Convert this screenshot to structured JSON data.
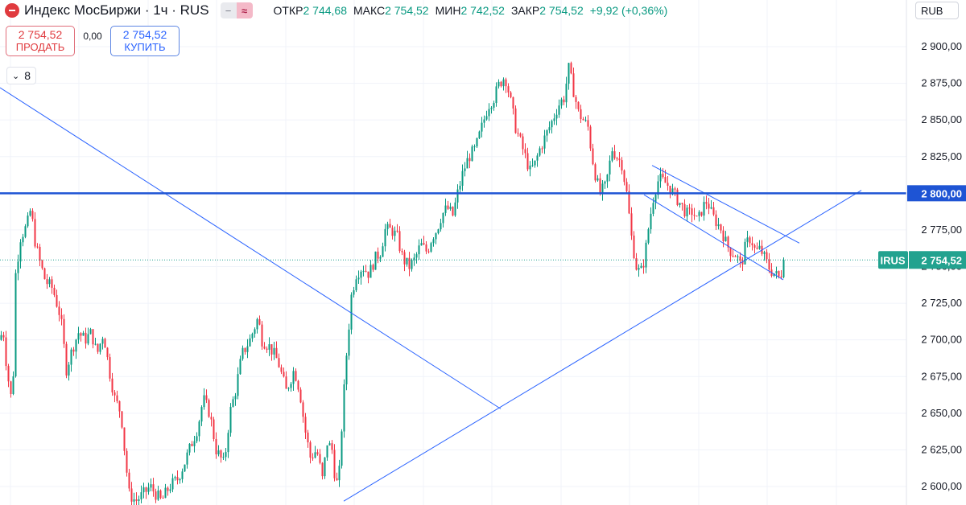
{
  "header": {
    "title": "Индекс МосБиржи · 1ч · RUS",
    "ohlc": [
      {
        "label": "ОТКР",
        "value": "2 744,68"
      },
      {
        "label": "МАКС",
        "value": "2 754,52"
      },
      {
        "label": "МИН",
        "value": "2 742,52"
      },
      {
        "label": "ЗАКР",
        "value": "2 754,52"
      }
    ],
    "change": "+9,92 (+0,36%)"
  },
  "trade": {
    "sell_price": "2 754,52",
    "sell_label": "ПРОДАТЬ",
    "spread": "0,00",
    "buy_price": "2 754,52",
    "buy_label": "КУПИТЬ"
  },
  "indicators_count": "8",
  "currency": "RUB",
  "colors": {
    "up": "#089981",
    "down": "#f23645",
    "line": "#2962ff",
    "level": "#1e54d4",
    "badge": "#22a28f",
    "level_badge": "#1e54d4"
  },
  "chart_data": {
    "type": "candlestick",
    "symbol": "IRUS",
    "interval": "1ч",
    "price_axis": {
      "ticks": [
        2600,
        2625,
        2650,
        2675,
        2700,
        2725,
        2750,
        2775,
        2800,
        2825,
        2850,
        2875,
        2900
      ],
      "tick_labels": [
        "2 600,00",
        "2 625,00",
        "2 650,00",
        "2 675,00",
        "2 700,00",
        "2 725,00",
        "2 750,00",
        "2 775,00",
        "2 800,00",
        "2 825,00",
        "2 850,00",
        "2 875,00",
        "2 900,00"
      ],
      "ylim": [
        2589,
        2920
      ]
    },
    "last_price": {
      "value": 2754.52,
      "symbol_label": "IRUS",
      "label": "2 754,52"
    },
    "horizontal_level": {
      "value": 2800,
      "label": "2 800,00"
    },
    "close_path": [
      [
        0,
        2700
      ],
      [
        3,
        2710
      ],
      [
        8,
        2680
      ],
      [
        12,
        2665
      ],
      [
        15,
        2655
      ],
      [
        19,
        2745
      ],
      [
        25,
        2770
      ],
      [
        33,
        2778
      ],
      [
        38,
        2790
      ],
      [
        42,
        2770
      ],
      [
        48,
        2755
      ],
      [
        56,
        2740
      ],
      [
        65,
        2735
      ],
      [
        75,
        2715
      ],
      [
        82,
        2680
      ],
      [
        90,
        2695
      ],
      [
        97,
        2705
      ],
      [
        105,
        2700
      ],
      [
        113,
        2705
      ],
      [
        120,
        2690
      ],
      [
        128,
        2705
      ],
      [
        135,
        2680
      ],
      [
        142,
        2660
      ],
      [
        150,
        2650
      ],
      [
        155,
        2620
      ],
      [
        160,
        2595
      ],
      [
        168,
        2590
      ],
      [
        178,
        2595
      ],
      [
        186,
        2600
      ],
      [
        193,
        2595
      ],
      [
        200,
        2590
      ],
      [
        210,
        2600
      ],
      [
        220,
        2605
      ],
      [
        228,
        2615
      ],
      [
        238,
        2630
      ],
      [
        245,
        2640
      ],
      [
        252,
        2660
      ],
      [
        260,
        2650
      ],
      [
        268,
        2625
      ],
      [
        278,
        2615
      ],
      [
        285,
        2650
      ],
      [
        292,
        2665
      ],
      [
        300,
        2690
      ],
      [
        310,
        2700
      ],
      [
        320,
        2715
      ],
      [
        325,
        2700
      ],
      [
        335,
        2695
      ],
      [
        345,
        2685
      ],
      [
        355,
        2665
      ],
      [
        365,
        2680
      ],
      [
        372,
        2665
      ],
      [
        378,
        2640
      ],
      [
        385,
        2620
      ],
      [
        393,
        2625
      ],
      [
        400,
        2605
      ],
      [
        406,
        2630
      ],
      [
        412,
        2625
      ],
      [
        416,
        2605
      ],
      [
        420,
        2600
      ],
      [
        425,
        2650
      ],
      [
        430,
        2690
      ],
      [
        436,
        2730
      ],
      [
        442,
        2745
      ],
      [
        450,
        2750
      ],
      [
        458,
        2745
      ],
      [
        465,
        2755
      ],
      [
        472,
        2760
      ],
      [
        478,
        2775
      ],
      [
        486,
        2775
      ],
      [
        493,
        2770
      ],
      [
        500,
        2755
      ],
      [
        508,
        2750
      ],
      [
        515,
        2755
      ],
      [
        522,
        2765
      ],
      [
        530,
        2760
      ],
      [
        536,
        2770
      ],
      [
        542,
        2775
      ],
      [
        548,
        2785
      ],
      [
        555,
        2790
      ],
      [
        562,
        2785
      ],
      [
        568,
        2800
      ],
      [
        575,
        2815
      ],
      [
        582,
        2825
      ],
      [
        590,
        2830
      ],
      [
        598,
        2845
      ],
      [
        606,
        2860
      ],
      [
        613,
        2865
      ],
      [
        620,
        2875
      ],
      [
        627,
        2880
      ],
      [
        633,
        2865
      ],
      [
        640,
        2845
      ],
      [
        646,
        2835
      ],
      [
        652,
        2825
      ],
      [
        658,
        2815
      ],
      [
        664,
        2820
      ],
      [
        670,
        2830
      ],
      [
        678,
        2840
      ],
      [
        686,
        2850
      ],
      [
        693,
        2860
      ],
      [
        700,
        2865
      ],
      [
        706,
        2885
      ],
      [
        712,
        2870
      ],
      [
        718,
        2855
      ],
      [
        724,
        2850
      ],
      [
        730,
        2845
      ],
      [
        735,
        2825
      ],
      [
        740,
        2810
      ],
      [
        745,
        2800
      ],
      [
        752,
        2805
      ],
      [
        760,
        2830
      ],
      [
        766,
        2825
      ],
      [
        772,
        2820
      ],
      [
        778,
        2800
      ],
      [
        784,
        2770
      ],
      [
        790,
        2750
      ],
      [
        795,
        2745
      ],
      [
        800,
        2755
      ],
      [
        806,
        2780
      ],
      [
        812,
        2800
      ],
      [
        818,
        2810
      ],
      [
        824,
        2808
      ],
      [
        830,
        2805
      ],
      [
        836,
        2800
      ],
      [
        842,
        2795
      ],
      [
        848,
        2790
      ],
      [
        854,
        2785
      ],
      [
        860,
        2788
      ],
      [
        866,
        2780
      ],
      [
        872,
        2790
      ],
      [
        878,
        2795
      ],
      [
        884,
        2785
      ],
      [
        890,
        2780
      ],
      [
        896,
        2775
      ],
      [
        902,
        2765
      ],
      [
        908,
        2760
      ],
      [
        914,
        2758
      ],
      [
        920,
        2750
      ],
      [
        926,
        2765
      ],
      [
        932,
        2770
      ],
      [
        938,
        2760
      ],
      [
        944,
        2762
      ],
      [
        950,
        2755
      ],
      [
        956,
        2748
      ],
      [
        962,
        2745
      ],
      [
        968,
        2742
      ],
      [
        975,
        2754.52
      ]
    ],
    "trend_lines": [
      {
        "name": "downtrend",
        "p1": [
          0,
          2872
        ],
        "p2": [
          622,
          2653
        ]
      },
      {
        "name": "uptrend",
        "p1": [
          427,
          2590
        ],
        "p2": [
          1070,
          2802
        ]
      },
      {
        "name": "channel-upper",
        "p1": [
          810,
          2819
        ],
        "p2": [
          993,
          2766
        ]
      },
      {
        "name": "channel-lower",
        "p1": [
          800,
          2799
        ],
        "p2": [
          973,
          2741
        ]
      }
    ]
  }
}
